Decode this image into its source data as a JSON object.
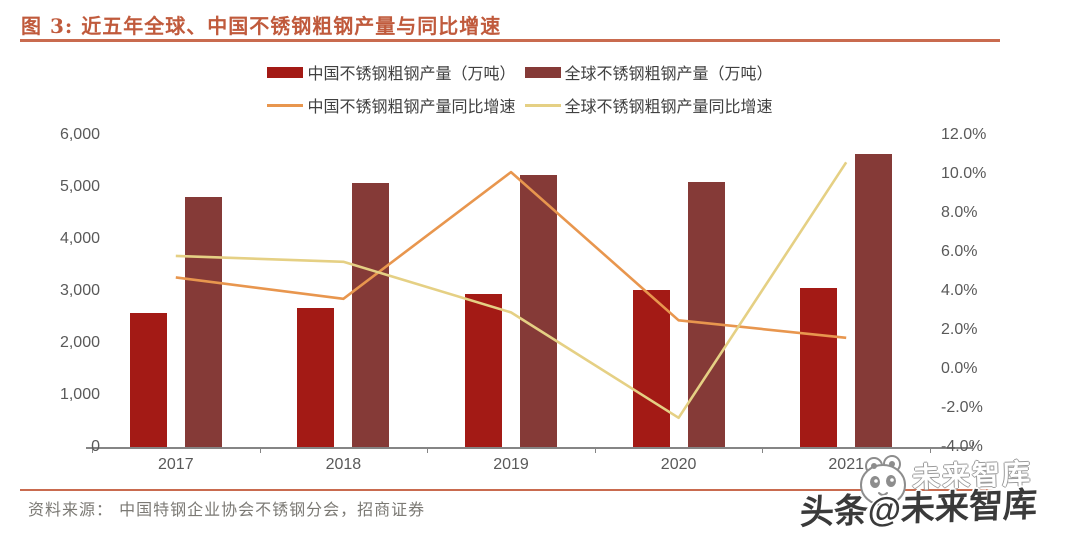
{
  "figure": {
    "title": "图 3:  近五年全球、中国不锈钢粗钢产量与同比增速",
    "source_text": "资料来源： 中国特钢企业协会不锈钢分会，招商证券"
  },
  "watermark": {
    "main_text": "头条@未来智库",
    "ghost_text": "未来智库",
    "logo": "panda-icon"
  },
  "colors": {
    "china_bar": "#a31a15",
    "global_bar": "#853a37",
    "china_line": "#e8964e",
    "global_line": "#e5d084",
    "accent_rule": "#c96b4f",
    "title_text": "#c05a3c",
    "axis_text": "#595959",
    "axis_line": "#858585",
    "legend_text": "#404040",
    "source_text": "#7b7974"
  },
  "chart_data": {
    "type": "bar",
    "subtype": "bar-line-combo",
    "categories": [
      "2017",
      "2018",
      "2019",
      "2020",
      "2021"
    ],
    "bar_series": [
      {
        "name": "中国不锈钢粗钢产量（万吨）",
        "axis": "left",
        "color_key": "china_bar",
        "values": [
          2577,
          2671,
          2940,
          3014,
          3063
        ]
      },
      {
        "name": "全球不锈钢粗钢产量（万吨）",
        "axis": "left",
        "color_key": "global_bar",
        "values": [
          4808,
          5073,
          5222,
          5089,
          5629
        ]
      }
    ],
    "line_series": [
      {
        "name": "中国不锈钢粗钢产量同比增速",
        "axis": "right",
        "color_key": "china_line",
        "values_pct": [
          4.7,
          3.6,
          10.1,
          2.5,
          1.6
        ]
      },
      {
        "name": "全球不锈钢粗钢产量同比增速",
        "axis": "right",
        "color_key": "global_line",
        "values_pct": [
          5.8,
          5.5,
          2.9,
          -2.5,
          10.6
        ]
      }
    ],
    "left_axis": {
      "min": 0,
      "max": 6000,
      "tick_labels": [
        "0",
        "1,000",
        "2,000",
        "3,000",
        "4,000",
        "5,000",
        "6,000"
      ]
    },
    "right_axis": {
      "min": -4,
      "max": 12,
      "tick_labels": [
        "-4.0%",
        "-2.0%",
        "0.0%",
        "2.0%",
        "4.0%",
        "6.0%",
        "8.0%",
        "10.0%",
        "12.0%"
      ]
    },
    "grid": false,
    "legend_position": "top-center"
  }
}
